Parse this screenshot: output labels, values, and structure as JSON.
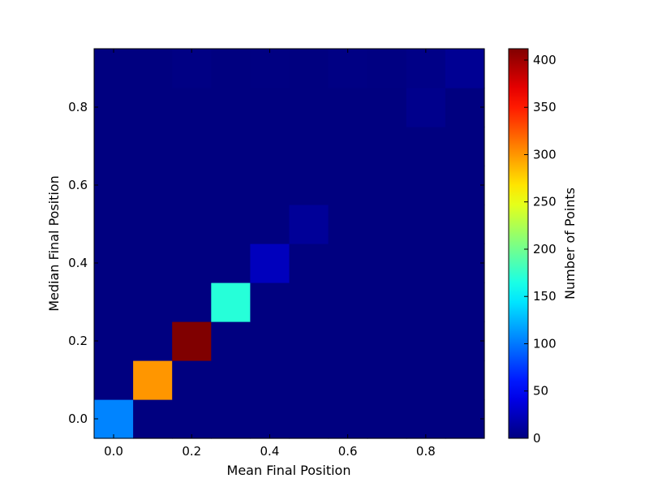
{
  "chart_data": {
    "type": "heatmap",
    "xlabel": "Mean Final Position",
    "ylabel": "Median Final Position",
    "colorbar_label": "Number of Points",
    "colormap": "jet",
    "x_edges": [
      -0.05,
      0.05,
      0.15,
      0.25,
      0.35,
      0.45,
      0.55,
      0.65,
      0.75,
      0.85,
      0.95
    ],
    "y_edges": [
      -0.05,
      0.05,
      0.15,
      0.25,
      0.35,
      0.45,
      0.55,
      0.65,
      0.75,
      0.85,
      0.95
    ],
    "x_ticks": [
      0.0,
      0.2,
      0.4,
      0.6,
      0.8
    ],
    "x_tick_labels": [
      "0.0",
      "0.2",
      "0.4",
      "0.6",
      "0.8"
    ],
    "y_ticks": [
      0.0,
      0.2,
      0.4,
      0.6,
      0.8
    ],
    "y_tick_labels": [
      "0.0",
      "0.2",
      "0.4",
      "0.6",
      "0.8"
    ],
    "xlim": [
      -0.05,
      0.95
    ],
    "ylim": [
      -0.05,
      0.95
    ],
    "vmin": 0,
    "vmax": 412,
    "colorbar_ticks": [
      0,
      50,
      100,
      150,
      200,
      250,
      300,
      350,
      400
    ],
    "colorbar_tick_labels": [
      "0",
      "50",
      "100",
      "150",
      "200",
      "250",
      "300",
      "350",
      "400"
    ],
    "z": [
      [
        105,
        0,
        0,
        0,
        0,
        0,
        0,
        0,
        0,
        0
      ],
      [
        0,
        300,
        0,
        0,
        0,
        0,
        0,
        0,
        0,
        0
      ],
      [
        0,
        0,
        412,
        0,
        0,
        0,
        0,
        0,
        0,
        0
      ],
      [
        0,
        0,
        0,
        170,
        0,
        0,
        0,
        0,
        0,
        0
      ],
      [
        0,
        0,
        0,
        0,
        25,
        0,
        0,
        0,
        0,
        0
      ],
      [
        0,
        0,
        0,
        0,
        0,
        10,
        0,
        0,
        0,
        0
      ],
      [
        0,
        0,
        0,
        0,
        0,
        0,
        0,
        0,
        0,
        0
      ],
      [
        0,
        0,
        0,
        0,
        0,
        0,
        0,
        0,
        0,
        0
      ],
      [
        0,
        0,
        0,
        0,
        0,
        0,
        0,
        0,
        5,
        0
      ],
      [
        0,
        0,
        2,
        0,
        1,
        0,
        2,
        1,
        3,
        8
      ]
    ]
  }
}
